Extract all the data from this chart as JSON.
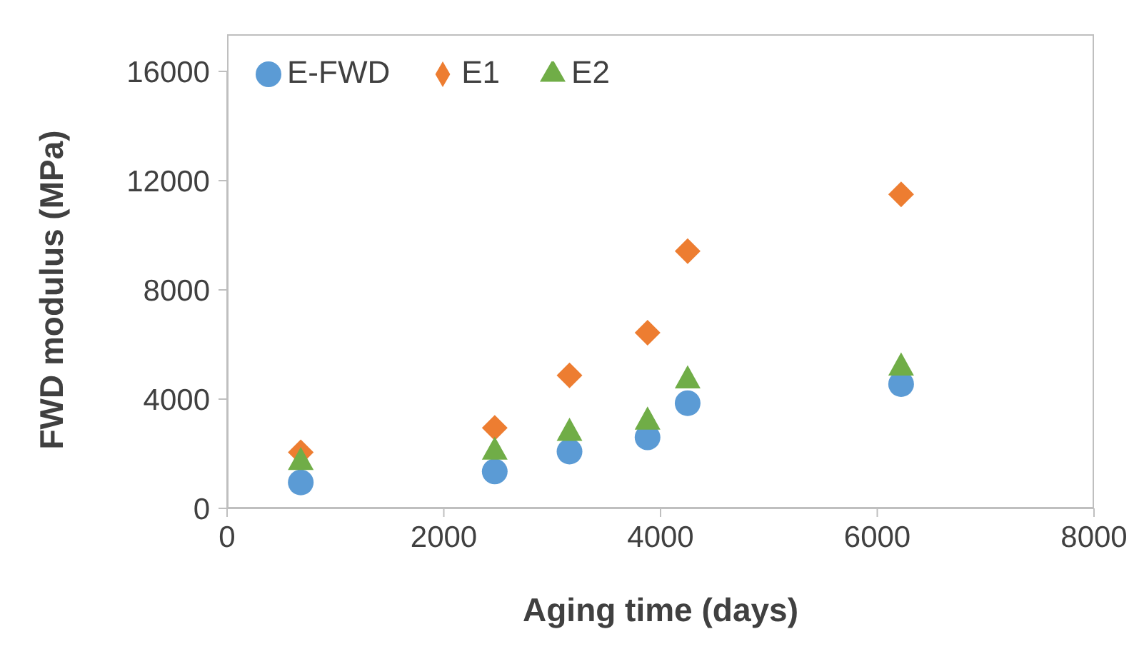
{
  "chart_data": {
    "type": "scatter",
    "xlabel": "Aging time (days)",
    "ylabel": "FWD modulus (MPa)",
    "x": [
      680,
      2470,
      3160,
      3880,
      4250,
      6220
    ],
    "series": [
      {
        "name": "E-FWD",
        "color": "#5b9bd5",
        "marker": "circle",
        "values": [
          950,
          1350,
          2080,
          2600,
          3850,
          4550
        ]
      },
      {
        "name": "E1",
        "color": "#ed7d31",
        "marker": "diamond",
        "values": [
          2050,
          2950,
          4870,
          6430,
          9420,
          11500
        ]
      },
      {
        "name": "E2",
        "color": "#70ad47",
        "marker": "triangle",
        "values": [
          1780,
          2160,
          2850,
          3260,
          4770,
          5240
        ]
      }
    ],
    "xlim": [
      0,
      8000
    ],
    "xticks": [
      0,
      2000,
      4000,
      6000,
      8000
    ],
    "ylim": [
      0,
      16000
    ],
    "yticks": [
      0,
      4000,
      8000,
      12000,
      16000
    ],
    "grid": false,
    "legend": "top left"
  }
}
